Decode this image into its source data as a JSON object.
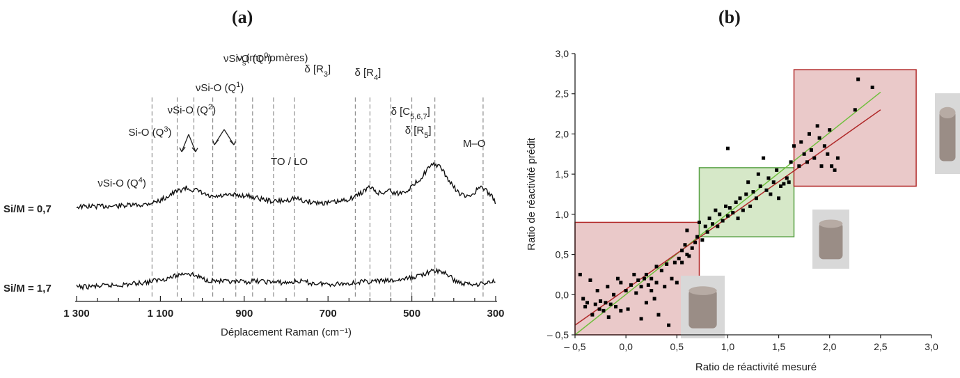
{
  "panel_a_label": "(a)",
  "panel_b_label": "(b)",
  "chart_data": [
    {
      "type": "line",
      "panel": "(a)",
      "xlabel": "Déplacement Raman (cm⁻¹)",
      "xlim": [
        1300,
        300
      ],
      "x_reversed": true,
      "xticks": [
        {
          "value": 1300,
          "label": "1 300"
        },
        {
          "value": 1100,
          "label": "1 100"
        },
        {
          "value": 900,
          "label": "900"
        },
        {
          "value": 700,
          "label": "700"
        },
        {
          "value": 500,
          "label": "500"
        },
        {
          "value": 300,
          "label": "300"
        }
      ],
      "series": [
        {
          "name": "Si/M = 0,7",
          "points": [
            [
              1300,
              0.1
            ],
            [
              1260,
              0.12
            ],
            [
              1200,
              0.14
            ],
            [
              1140,
              0.2
            ],
            [
              1100,
              0.4
            ],
            [
              1070,
              0.75
            ],
            [
              1040,
              1.0
            ],
            [
              1010,
              0.85
            ],
            [
              980,
              0.55
            ],
            [
              950,
              0.62
            ],
            [
              920,
              0.66
            ],
            [
              890,
              0.62
            ],
            [
              860,
              0.48
            ],
            [
              830,
              0.35
            ],
            [
              800,
              0.4
            ],
            [
              780,
              0.52
            ],
            [
              760,
              0.38
            ],
            [
              730,
              0.3
            ],
            [
              700,
              0.28
            ],
            [
              670,
              0.35
            ],
            [
              640,
              0.55
            ],
            [
              620,
              0.78
            ],
            [
              600,
              1.05
            ],
            [
              585,
              0.8
            ],
            [
              570,
              0.75
            ],
            [
              555,
              0.92
            ],
            [
              540,
              0.72
            ],
            [
              520,
              0.8
            ],
            [
              500,
              1.05
            ],
            [
              480,
              1.45
            ],
            [
              460,
              1.95
            ],
            [
              445,
              2.15
            ],
            [
              430,
              1.95
            ],
            [
              410,
              1.3
            ],
            [
              390,
              0.8
            ],
            [
              370,
              0.55
            ],
            [
              355,
              0.7
            ],
            [
              340,
              1.0
            ],
            [
              325,
              0.95
            ],
            [
              310,
              0.6
            ],
            [
              300,
              0.3
            ]
          ]
        },
        {
          "name": "Si/M = 1,7",
          "points": [
            [
              1300,
              0.05
            ],
            [
              1240,
              0.1
            ],
            [
              1180,
              0.18
            ],
            [
              1130,
              0.3
            ],
            [
              1090,
              0.45
            ],
            [
              1060,
              0.6
            ],
            [
              1040,
              0.75
            ],
            [
              1020,
              0.62
            ],
            [
              990,
              0.4
            ],
            [
              960,
              0.34
            ],
            [
              930,
              0.28
            ],
            [
              900,
              0.3
            ],
            [
              870,
              0.34
            ],
            [
              840,
              0.3
            ],
            [
              800,
              0.26
            ],
            [
              770,
              0.34
            ],
            [
              740,
              0.24
            ],
            [
              700,
              0.2
            ],
            [
              660,
              0.22
            ],
            [
              620,
              0.3
            ],
            [
              580,
              0.34
            ],
            [
              540,
              0.36
            ],
            [
              500,
              0.5
            ],
            [
              470,
              0.7
            ],
            [
              445,
              0.84
            ],
            [
              420,
              0.74
            ],
            [
              400,
              0.4
            ],
            [
              380,
              0.22
            ],
            [
              350,
              0.2
            ],
            [
              320,
              0.24
            ],
            [
              300,
              0.4
            ]
          ]
        }
      ],
      "annotations": [
        {
          "text_parts": [
            "νSi-O (Q",
            "4",
            ")"
          ],
          "x": 1120
        },
        {
          "text_parts": [
            "Si-O (Q",
            "3",
            ")"
          ],
          "x": 1060
        },
        {
          "text_parts": [
            "νSi-O (Q",
            "2",
            ")"
          ],
          "x": 1000
        },
        {
          "text_parts": [
            "νSi-O (Q",
            "1",
            ")"
          ],
          "x": 880
        },
        {
          "text_parts": [
            "νSi-O (Q",
            "0",
            ")"
          ],
          "x": 830
        },
        {
          "text_parts": [
            "TO / LO"
          ],
          "x": 780
        },
        {
          "text_parts": [
            "ν",
            "s",
            "(monomères)"
          ],
          "x": 635
        },
        {
          "text_parts": [
            "δ [R",
            "3",
            "]"
          ],
          "x": 600
        },
        {
          "text_parts": [
            "δ [R",
            "4",
            "]"
          ],
          "x": 550
        },
        {
          "text_parts": [
            "δ [C",
            "5,6,7",
            "]"
          ],
          "x": 500
        },
        {
          "text_parts": [
            "δ [R",
            "5",
            "]"
          ],
          "x": 445
        },
        {
          "text_parts": [
            "M–O"
          ],
          "x": 330
        }
      ],
      "dashed_lines_x": [
        1120,
        1060,
        1020,
        975,
        920,
        880,
        830,
        780,
        635,
        600,
        550,
        500,
        445,
        330
      ]
    },
    {
      "type": "scatter",
      "panel": "(b)",
      "xlabel": "Ratio de réactivité mesuré",
      "ylabel": "Ratio de réactivité prédit",
      "xlim": [
        -0.5,
        3.0
      ],
      "ylim": [
        -0.5,
        3.0
      ],
      "xticks": [
        {
          "value": -0.5,
          "label": "– 0,5"
        },
        {
          "value": 0.0,
          "label": "0,0"
        },
        {
          "value": 0.5,
          "label": "0,5"
        },
        {
          "value": 1.0,
          "label": "1,0"
        },
        {
          "value": 1.5,
          "label": "1,5"
        },
        {
          "value": 2.0,
          "label": "2,0"
        },
        {
          "value": 2.5,
          "label": "2,5"
        },
        {
          "value": 3.0,
          "label": "3,0"
        }
      ],
      "yticks": [
        {
          "value": -0.5,
          "label": "– 0,5"
        },
        {
          "value": 0.0,
          "label": "0,0"
        },
        {
          "value": 0.5,
          "label": "0,5"
        },
        {
          "value": 1.0,
          "label": "1,0"
        },
        {
          "value": 1.5,
          "label": "1,5"
        },
        {
          "value": 2.0,
          "label": "2,0"
        },
        {
          "value": 2.5,
          "label": "2,5"
        },
        {
          "value": 3.0,
          "label": "3,0"
        }
      ],
      "points": [
        [
          -0.45,
          0.25
        ],
        [
          -0.42,
          -0.05
        ],
        [
          -0.4,
          -0.15
        ],
        [
          -0.38,
          -0.1
        ],
        [
          -0.35,
          0.18
        ],
        [
          -0.33,
          -0.25
        ],
        [
          -0.3,
          -0.12
        ],
        [
          -0.28,
          0.05
        ],
        [
          -0.26,
          -0.18
        ],
        [
          -0.25,
          -0.08
        ],
        [
          -0.22,
          -0.2
        ],
        [
          -0.2,
          -0.1
        ],
        [
          -0.18,
          0.1
        ],
        [
          -0.17,
          -0.28
        ],
        [
          -0.15,
          -0.12
        ],
        [
          -0.12,
          0.0
        ],
        [
          -0.1,
          -0.15
        ],
        [
          -0.08,
          0.2
        ],
        [
          -0.05,
          0.15
        ],
        [
          -0.05,
          -0.2
        ],
        [
          0.0,
          0.05
        ],
        [
          0.02,
          -0.18
        ],
        [
          0.05,
          0.12
        ],
        [
          0.08,
          0.25
        ],
        [
          0.1,
          0.02
        ],
        [
          0.12,
          0.18
        ],
        [
          0.15,
          0.1
        ],
        [
          0.15,
          -0.3
        ],
        [
          0.18,
          0.2
        ],
        [
          0.2,
          0.25
        ],
        [
          0.2,
          -0.1
        ],
        [
          0.22,
          0.12
        ],
        [
          0.25,
          0.2
        ],
        [
          0.25,
          0.05
        ],
        [
          0.28,
          -0.05
        ],
        [
          0.3,
          0.35
        ],
        [
          0.3,
          0.15
        ],
        [
          0.32,
          -0.25
        ],
        [
          0.35,
          0.3
        ],
        [
          0.38,
          0.1
        ],
        [
          0.4,
          0.38
        ],
        [
          0.42,
          -0.38
        ],
        [
          0.45,
          0.2
        ],
        [
          0.48,
          0.4
        ],
        [
          0.5,
          0.15
        ],
        [
          0.52,
          0.45
        ],
        [
          0.55,
          0.55
        ],
        [
          0.55,
          0.4
        ],
        [
          0.58,
          0.62
        ],
        [
          0.6,
          0.5
        ],
        [
          0.6,
          0.8
        ],
        [
          0.62,
          0.48
        ],
        [
          0.65,
          0.58
        ],
        [
          0.68,
          0.65
        ],
        [
          0.7,
          0.72
        ],
        [
          0.72,
          0.9
        ],
        [
          0.75,
          0.68
        ],
        [
          0.78,
          0.85
        ],
        [
          0.8,
          0.78
        ],
        [
          0.82,
          0.95
        ],
        [
          0.85,
          0.88
        ],
        [
          0.88,
          1.05
        ],
        [
          0.9,
          0.85
        ],
        [
          0.92,
          1.0
        ],
        [
          0.95,
          0.92
        ],
        [
          0.98,
          1.1
        ],
        [
          1.0,
          0.98
        ],
        [
          1.0,
          1.82
        ],
        [
          1.02,
          1.08
        ],
        [
          1.05,
          1.02
        ],
        [
          1.08,
          1.15
        ],
        [
          1.1,
          0.95
        ],
        [
          1.12,
          1.2
        ],
        [
          1.15,
          1.05
        ],
        [
          1.18,
          1.25
        ],
        [
          1.2,
          1.4
        ],
        [
          1.22,
          1.1
        ],
        [
          1.25,
          1.28
        ],
        [
          1.28,
          1.2
        ],
        [
          1.3,
          1.5
        ],
        [
          1.32,
          1.35
        ],
        [
          1.35,
          1.7
        ],
        [
          1.38,
          1.3
        ],
        [
          1.4,
          1.45
        ],
        [
          1.42,
          1.25
        ],
        [
          1.45,
          1.4
        ],
        [
          1.48,
          1.55
        ],
        [
          1.5,
          1.2
        ],
        [
          1.52,
          1.35
        ],
        [
          1.55,
          1.38
        ],
        [
          1.58,
          1.45
        ],
        [
          1.6,
          1.4
        ],
        [
          1.62,
          1.65
        ],
        [
          1.65,
          1.85
        ],
        [
          1.7,
          1.6
        ],
        [
          1.72,
          1.9
        ],
        [
          1.75,
          1.75
        ],
        [
          1.78,
          1.65
        ],
        [
          1.8,
          2.0
        ],
        [
          1.82,
          1.8
        ],
        [
          1.85,
          1.7
        ],
        [
          1.88,
          2.1
        ],
        [
          1.9,
          1.95
        ],
        [
          1.92,
          1.6
        ],
        [
          1.95,
          1.85
        ],
        [
          1.98,
          1.75
        ],
        [
          2.0,
          2.05
        ],
        [
          2.02,
          1.6
        ],
        [
          2.05,
          1.55
        ],
        [
          2.08,
          1.7
        ],
        [
          2.25,
          2.3
        ],
        [
          2.28,
          2.68
        ],
        [
          2.42,
          2.58
        ]
      ],
      "fit_lines": [
        {
          "color": "#6fbf3c",
          "from": [
            -0.5,
            -0.5
          ],
          "to": [
            2.5,
            2.52
          ]
        },
        {
          "color": "#b02a2a",
          "from": [
            -0.5,
            -0.38
          ],
          "to": [
            2.5,
            2.3
          ]
        }
      ],
      "regions": [
        {
          "color": "#b22a2a",
          "fill": "#eac9c9",
          "x": [
            -0.5,
            0.72
          ],
          "y": [
            -0.5,
            0.9
          ]
        },
        {
          "color": "#57a043",
          "fill": "#d6e8c8",
          "x": [
            0.72,
            1.65
          ],
          "y": [
            0.72,
            1.58
          ]
        },
        {
          "color": "#b22a2a",
          "fill": "#eac9c9",
          "x": [
            1.65,
            2.85
          ],
          "y": [
            1.35,
            2.8
          ]
        }
      ]
    }
  ],
  "colors": {
    "fit_green": "#6fbf3c",
    "fit_red": "#b02a2a",
    "region_red": "#b22a2a",
    "region_green": "#57a043"
  }
}
